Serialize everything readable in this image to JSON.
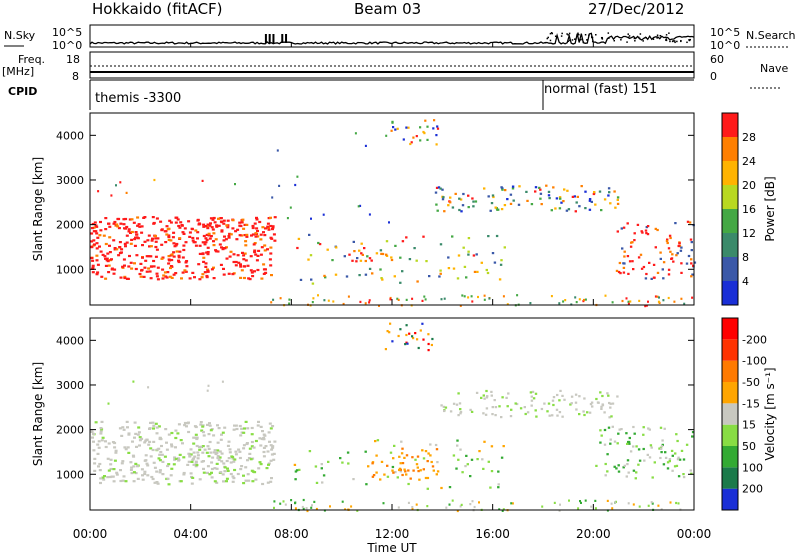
{
  "header": {
    "station": "Hokkaido (fitACF)",
    "beam": "Beam 03",
    "date": "27/Dec/2012"
  },
  "side_labels": {
    "nsky": "N.Sky",
    "nsearch": "N.Search",
    "freq": "Freq.",
    "freq_unit": "[MHz]",
    "nave": "Nave",
    "cpid": "CPID"
  },
  "cpid_labels": [
    {
      "text": "themis -3300"
    },
    {
      "text": "normal (fast) 151"
    }
  ],
  "colors": {
    "red": "#ff1a1a",
    "orange": "#ff8c00",
    "yellow_orange": "#ffb300",
    "lightgreen": "#66cc33",
    "green": "#33aa33",
    "grey": "#c8c8c0",
    "blue": "#1a2fd6"
  },
  "chart_data": [
    {
      "type": "line",
      "name": "sky_noise",
      "y_ticks_left": [
        "10^5",
        "10^0"
      ],
      "y_ticks_right": [
        "10^5",
        "10^0"
      ],
      "x": [
        "00:00",
        "04:00",
        "08:00",
        "12:00",
        "16:00",
        "20:00",
        "00:00"
      ]
    },
    {
      "type": "line",
      "name": "frequency",
      "y_ticks_left": [
        "8",
        "18"
      ],
      "y_ticks_right": [
        "0",
        "60"
      ]
    },
    {
      "type": "heatmap",
      "name": "power",
      "ylabel": "Slant Range [km]",
      "y_ticks": [
        "1000",
        "2000",
        "3000",
        "4000"
      ],
      "ylim": [
        200,
        4500
      ],
      "colorbar": {
        "label": "Power [dB]",
        "ticks": [
          "4",
          "8",
          "12",
          "16",
          "20",
          "24",
          "28"
        ],
        "colors": [
          "#1a2fd6",
          "#3a58a8",
          "#3a8a6a",
          "#44a844",
          "#b8d820",
          "#ffb300",
          "#ff7f00",
          "#ff1a1a"
        ]
      }
    },
    {
      "type": "heatmap",
      "name": "velocity",
      "ylabel": "Slant Range [km]",
      "y_ticks": [
        "1000",
        "2000",
        "3000",
        "4000"
      ],
      "ylim": [
        200,
        4500
      ],
      "colorbar": {
        "label": "Velocity [m s⁻¹]",
        "ticks": [
          "200",
          "100",
          "50",
          "15",
          "-15",
          "-50",
          "-100",
          "-200"
        ],
        "colors": [
          "#1a2fd6",
          "#1b7a4a",
          "#33aa33",
          "#88dd44",
          "#c8c8c0",
          "#ffa500",
          "#ff7a00",
          "#ff3300",
          "#ff0000"
        ]
      },
      "xlabel": "Time UT",
      "x_ticks": [
        "00:00",
        "04:00",
        "08:00",
        "12:00",
        "16:00",
        "20:00",
        "00:00"
      ]
    }
  ]
}
